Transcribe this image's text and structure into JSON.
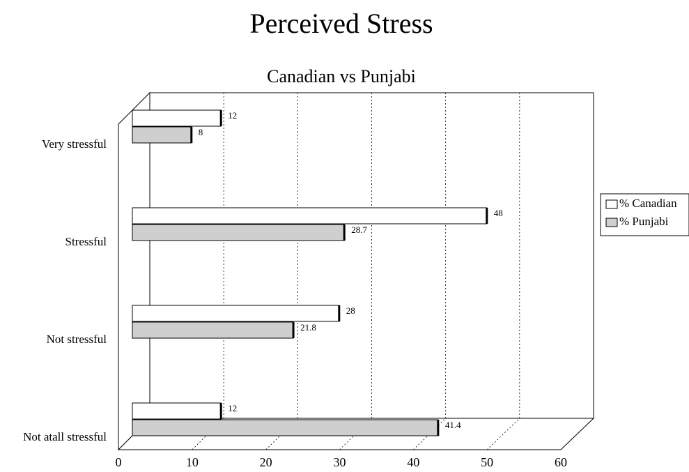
{
  "chart_data": {
    "type": "hbar",
    "title": "Perceived Stress",
    "subtitle": "Canadian vs Punjabi",
    "categories": [
      "Very stressful",
      "Stressful",
      "Not stressful",
      "Not atall stressful"
    ],
    "series": [
      {
        "name": "% Canadian",
        "color": "#ffffff",
        "values": [
          12,
          48,
          28,
          12
        ]
      },
      {
        "name": "% Punjabi",
        "color": "#cfcfcf",
        "values": [
          8,
          28.7,
          21.8,
          41.4
        ]
      }
    ],
    "xlim": [
      0,
      60
    ],
    "xticks": [
      0,
      10,
      20,
      30,
      40,
      50,
      60
    ],
    "grid": true,
    "legend": "right"
  }
}
